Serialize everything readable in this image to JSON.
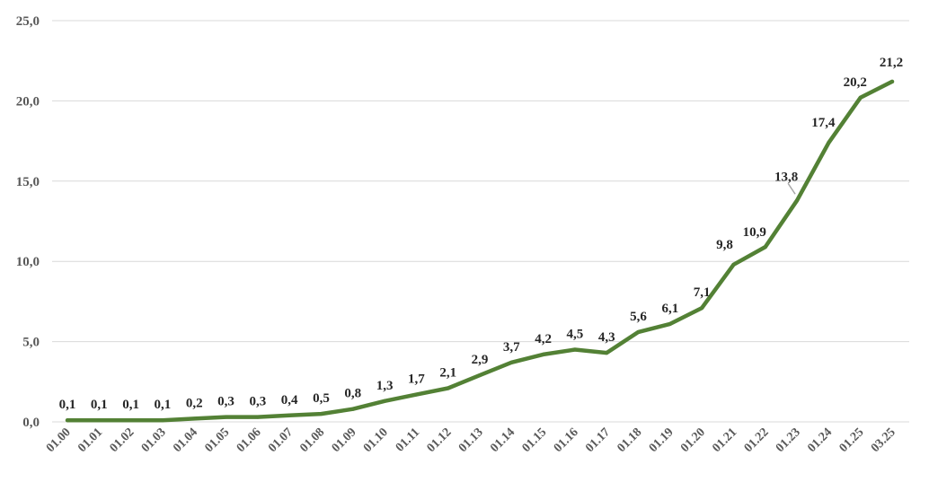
{
  "chart_data": {
    "type": "line",
    "title": "",
    "xlabel": "",
    "ylabel": "",
    "ylim": [
      0,
      25
    ],
    "y_ticks": [
      "0,0",
      "5,0",
      "10,0",
      "15,0",
      "20,0",
      "25,0"
    ],
    "grid": true,
    "legend": "none",
    "color": "#538135",
    "categories": [
      "01.00",
      "01.01",
      "01.02",
      "01.03",
      "01.04",
      "01.05",
      "01.06",
      "01.07",
      "01.08",
      "01.09",
      "01.10",
      "01.11",
      "01.12",
      "01.13",
      "01.14",
      "01.15",
      "01.16",
      "01.17",
      "01.18",
      "01.19",
      "01.20",
      "01.21",
      "01.22",
      "01.23",
      "01.24",
      "01.25",
      "03.25"
    ],
    "values": [
      0.1,
      0.1,
      0.1,
      0.1,
      0.2,
      0.3,
      0.3,
      0.4,
      0.5,
      0.8,
      1.3,
      1.7,
      2.1,
      2.9,
      3.7,
      4.2,
      4.5,
      4.3,
      5.6,
      6.1,
      7.1,
      9.8,
      10.9,
      13.8,
      17.4,
      20.2,
      21.2
    ],
    "value_labels": [
      "0,1",
      "0,1",
      "0,1",
      "0,1",
      "0,2",
      "0,3",
      "0,3",
      "0,4",
      "0,5",
      "0,8",
      "1,3",
      "1,7",
      "2,1",
      "2,9",
      "3,7",
      "4,2",
      "4,5",
      "4,3",
      "5,6",
      "6,1",
      "7,1",
      "9,8",
      "10,9",
      "13,8",
      "17,4",
      "20,2",
      "21,2"
    ]
  }
}
